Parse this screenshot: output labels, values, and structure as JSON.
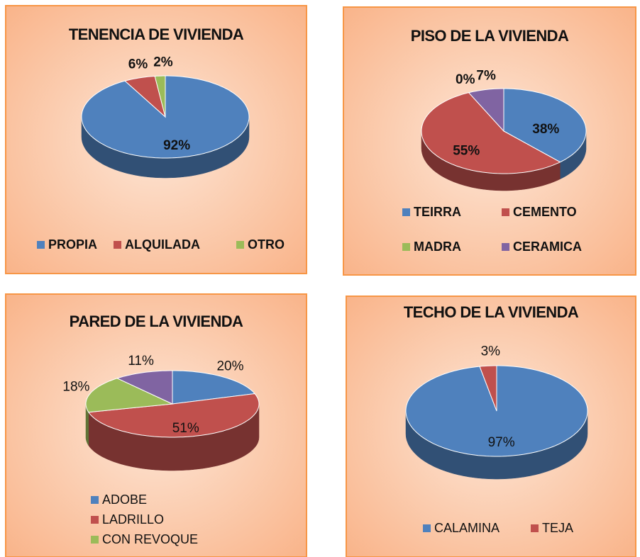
{
  "chart_data": [
    {
      "type": "pie",
      "title": "TENENCIA DE VIVIENDA",
      "categories": [
        "PROPIA",
        "ALQUILADA",
        "OTRO"
      ],
      "values": [
        92,
        6,
        2
      ],
      "value_labels": [
        "92%",
        "6%",
        "2%"
      ],
      "colors": [
        "#4f81bd",
        "#c0504d",
        "#9bbb59"
      ]
    },
    {
      "type": "pie",
      "title": "PISO DE LA VIVIENDA",
      "categories": [
        "TEIRRA",
        "CEMENTO",
        "MADRA",
        "CERAMICA"
      ],
      "values": [
        38,
        55,
        0,
        7
      ],
      "value_labels": [
        "38%",
        "55%",
        "0%",
        "7%"
      ],
      "colors": [
        "#4f81bd",
        "#c0504d",
        "#9bbb59",
        "#8064a2"
      ]
    },
    {
      "type": "pie",
      "title": "PARED DE LA VIVIENDA",
      "categories": [
        "ADOBE",
        "LADRILLO",
        "CON REVOQUE",
        null
      ],
      "values": [
        20,
        51,
        18,
        11
      ],
      "value_labels": [
        "20%",
        "51%",
        "18%",
        "11%"
      ],
      "colors": [
        "#4f81bd",
        "#c0504d",
        "#9bbb59",
        "#8064a2"
      ]
    },
    {
      "type": "pie",
      "title": "TECHO DE LA VIVIENDA",
      "categories": [
        "CALAMINA",
        "TEJA"
      ],
      "values": [
        97,
        3
      ],
      "value_labels": [
        "97%",
        "3%"
      ],
      "colors": [
        "#4f81bd",
        "#c0504d"
      ]
    }
  ]
}
